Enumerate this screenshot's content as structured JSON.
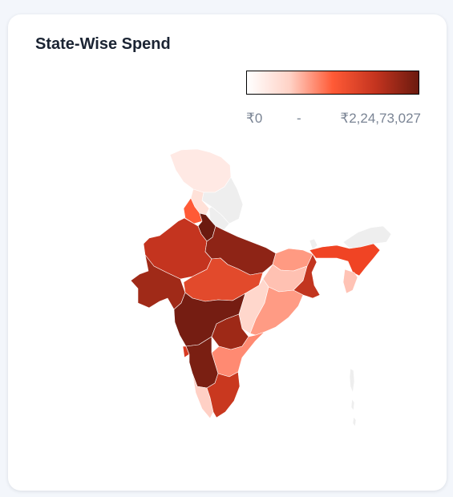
{
  "card": {
    "title": "State-Wise Spend"
  },
  "legend": {
    "min_label": "₹0",
    "separator": "-",
    "max_label": "₹2,24,73,027",
    "gradient": [
      "#ffffff",
      "#ffd2c6",
      "#ff5a36",
      "#c4341f",
      "#6b1a0f"
    ]
  },
  "colors": {
    "no_data": "#eeeeee",
    "card_background": "#ffffff",
    "page_background": "#f3f6fb"
  },
  "regions": [
    {
      "id": "jammu-kashmir",
      "fill": "#ffe9e4"
    },
    {
      "id": "ladakh",
      "fill": "#eeeeee"
    },
    {
      "id": "himachal",
      "fill": "#ffe1d8"
    },
    {
      "id": "punjab",
      "fill": "#ff5a36"
    },
    {
      "id": "uttarakhand",
      "fill": "#eeeeee"
    },
    {
      "id": "haryana-delhi",
      "fill": "#6b1a0f"
    },
    {
      "id": "rajasthan",
      "fill": "#c4341f"
    },
    {
      "id": "uttar-pradesh",
      "fill": "#8e2416"
    },
    {
      "id": "gujarat",
      "fill": "#a02a18"
    },
    {
      "id": "madhya-pradesh",
      "fill": "#e24a2c"
    },
    {
      "id": "bihar",
      "fill": "#ff9a82"
    },
    {
      "id": "jharkhand",
      "fill": "#ffc1b2"
    },
    {
      "id": "west-bengal",
      "fill": "#c2351f"
    },
    {
      "id": "chhattisgarh",
      "fill": "#ffd7cc"
    },
    {
      "id": "odisha",
      "fill": "#ff9b84"
    },
    {
      "id": "maharashtra",
      "fill": "#751d12"
    },
    {
      "id": "telangana",
      "fill": "#9e2917"
    },
    {
      "id": "andhra-pradesh",
      "fill": "#ff8a72"
    },
    {
      "id": "goa",
      "fill": "#d83a22"
    },
    {
      "id": "karnataka",
      "fill": "#7a1f12"
    },
    {
      "id": "kerala",
      "fill": "#ffd0c5"
    },
    {
      "id": "tamil-nadu",
      "fill": "#c9381f"
    },
    {
      "id": "sikkim",
      "fill": "#eeeeee"
    },
    {
      "id": "arunachal",
      "fill": "#eeeeee"
    },
    {
      "id": "assam-northeast",
      "fill": "#f04424"
    },
    {
      "id": "tripura-mizoram",
      "fill": "#ffc3b5"
    },
    {
      "id": "andaman-nicobar",
      "fill": "#eeeeee"
    }
  ]
}
